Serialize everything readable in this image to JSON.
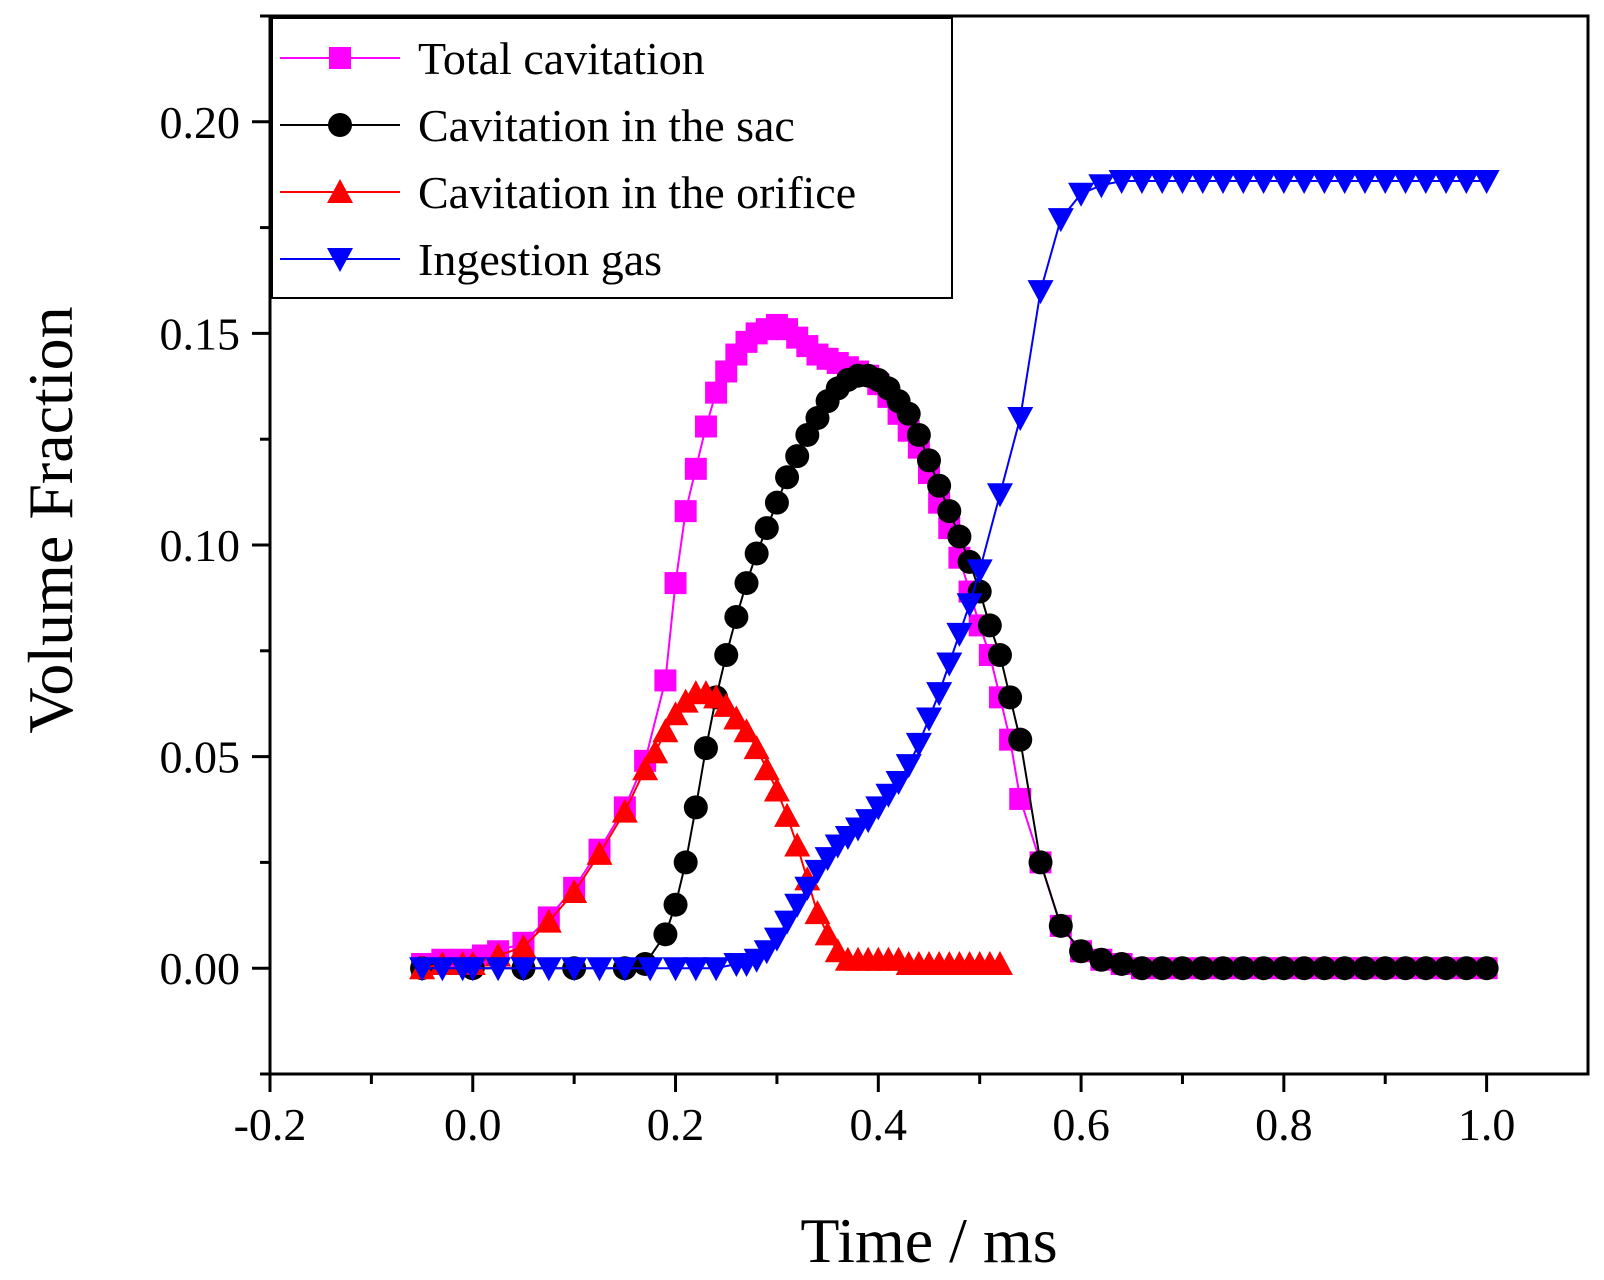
{
  "chart_data": {
    "type": "line",
    "title": "",
    "xlabel": "Time / ms",
    "ylabel": "Volume Fraction",
    "xlim": [
      -0.2,
      1.1
    ],
    "ylim": [
      -0.025,
      0.225
    ],
    "xticks": [
      -0.2,
      0.0,
      0.2,
      0.4,
      0.6,
      0.8,
      1.0
    ],
    "xtick_labels": [
      "-0.2",
      "0.0",
      "0.2",
      "0.4",
      "0.6",
      "0.8",
      "1.0"
    ],
    "yticks": [
      0.0,
      0.05,
      0.1,
      0.15,
      0.2
    ],
    "ytick_labels": [
      "0.00",
      "0.05",
      "0.10",
      "0.15",
      "0.20"
    ],
    "grid": false,
    "legend_position": "top-left",
    "series": [
      {
        "name": "Total cavitation",
        "color": "#ff00ff",
        "marker": "square",
        "x": [
          -0.05,
          -0.03,
          -0.01,
          0.01,
          0.025,
          0.05,
          0.075,
          0.1,
          0.125,
          0.15,
          0.17,
          0.19,
          0.2,
          0.21,
          0.22,
          0.23,
          0.24,
          0.25,
          0.26,
          0.27,
          0.28,
          0.29,
          0.3,
          0.31,
          0.32,
          0.33,
          0.34,
          0.35,
          0.36,
          0.37,
          0.38,
          0.39,
          0.4,
          0.41,
          0.42,
          0.43,
          0.44,
          0.45,
          0.46,
          0.47,
          0.48,
          0.49,
          0.5,
          0.51,
          0.52,
          0.53,
          0.54,
          0.56,
          0.58,
          0.6,
          0.62,
          0.64,
          0.66,
          0.68,
          0.7,
          0.72,
          0.74,
          0.76,
          0.78,
          0.8,
          0.82,
          0.84,
          0.86,
          0.88,
          0.9,
          0.92,
          0.94,
          0.96,
          0.98,
          1.0
        ],
        "y": [
          0.001,
          0.002,
          0.002,
          0.003,
          0.004,
          0.006,
          0.012,
          0.019,
          0.028,
          0.038,
          0.049,
          0.068,
          0.091,
          0.108,
          0.118,
          0.128,
          0.136,
          0.141,
          0.145,
          0.148,
          0.15,
          0.151,
          0.152,
          0.151,
          0.149,
          0.147,
          0.145,
          0.144,
          0.143,
          0.142,
          0.141,
          0.14,
          0.138,
          0.135,
          0.131,
          0.127,
          0.123,
          0.117,
          0.11,
          0.104,
          0.097,
          0.089,
          0.081,
          0.074,
          0.064,
          0.054,
          0.04,
          0.025,
          0.01,
          0.004,
          0.002,
          0.001,
          0.0,
          0.0,
          0.0,
          0.0,
          0.0,
          0.0,
          0.0,
          0.0,
          0.0,
          0.0,
          0.0,
          0.0,
          0.0,
          0.0,
          0.0,
          0.0,
          0.0,
          0.0
        ]
      },
      {
        "name": "Cavitation in the sac",
        "color": "#000000",
        "marker": "circle",
        "x": [
          -0.05,
          0.0,
          0.05,
          0.1,
          0.15,
          0.17,
          0.19,
          0.2,
          0.21,
          0.22,
          0.23,
          0.24,
          0.25,
          0.26,
          0.27,
          0.28,
          0.29,
          0.3,
          0.31,
          0.32,
          0.33,
          0.34,
          0.35,
          0.36,
          0.37,
          0.38,
          0.39,
          0.4,
          0.41,
          0.42,
          0.43,
          0.44,
          0.45,
          0.46,
          0.47,
          0.48,
          0.49,
          0.5,
          0.51,
          0.52,
          0.53,
          0.54,
          0.56,
          0.58,
          0.6,
          0.62,
          0.64,
          0.66,
          0.68,
          0.7,
          0.72,
          0.74,
          0.76,
          0.78,
          0.8,
          0.82,
          0.84,
          0.86,
          0.88,
          0.9,
          0.92,
          0.94,
          0.96,
          0.98,
          1.0
        ],
        "y": [
          0.0,
          0.0,
          0.0,
          0.0,
          0.0,
          0.001,
          0.008,
          0.015,
          0.025,
          0.038,
          0.052,
          0.064,
          0.074,
          0.083,
          0.091,
          0.098,
          0.104,
          0.11,
          0.116,
          0.121,
          0.126,
          0.13,
          0.134,
          0.137,
          0.139,
          0.14,
          0.14,
          0.139,
          0.137,
          0.134,
          0.131,
          0.126,
          0.12,
          0.114,
          0.108,
          0.102,
          0.096,
          0.089,
          0.081,
          0.074,
          0.064,
          0.054,
          0.025,
          0.01,
          0.004,
          0.002,
          0.001,
          0.0,
          0.0,
          0.0,
          0.0,
          0.0,
          0.0,
          0.0,
          0.0,
          0.0,
          0.0,
          0.0,
          0.0,
          0.0,
          0.0,
          0.0,
          0.0,
          0.0,
          0.0
        ]
      },
      {
        "name": "Cavitation in the orifice",
        "color": "#ff0000",
        "marker": "triangle-up",
        "x": [
          -0.05,
          -0.03,
          -0.01,
          0.0,
          0.025,
          0.05,
          0.075,
          0.1,
          0.125,
          0.15,
          0.17,
          0.18,
          0.19,
          0.2,
          0.21,
          0.22,
          0.23,
          0.24,
          0.25,
          0.26,
          0.27,
          0.28,
          0.29,
          0.3,
          0.31,
          0.32,
          0.33,
          0.34,
          0.35,
          0.36,
          0.37,
          0.38,
          0.39,
          0.4,
          0.41,
          0.42,
          0.43,
          0.44,
          0.45,
          0.46,
          0.47,
          0.48,
          0.49,
          0.5,
          0.51,
          0.52
        ],
        "y": [
          0.0,
          0.001,
          0.001,
          0.001,
          0.003,
          0.005,
          0.011,
          0.018,
          0.027,
          0.037,
          0.047,
          0.051,
          0.056,
          0.06,
          0.063,
          0.065,
          0.065,
          0.064,
          0.062,
          0.059,
          0.056,
          0.052,
          0.047,
          0.042,
          0.036,
          0.029,
          0.021,
          0.013,
          0.008,
          0.004,
          0.002,
          0.002,
          0.002,
          0.002,
          0.002,
          0.002,
          0.001,
          0.001,
          0.001,
          0.001,
          0.001,
          0.001,
          0.001,
          0.001,
          0.001,
          0.001
        ]
      },
      {
        "name": "Ingestion gas",
        "color": "#0000ff",
        "marker": "triangle-down",
        "x": [
          -0.05,
          -0.03,
          -0.01,
          0.0,
          0.025,
          0.05,
          0.075,
          0.1,
          0.125,
          0.15,
          0.175,
          0.2,
          0.22,
          0.24,
          0.26,
          0.27,
          0.28,
          0.29,
          0.3,
          0.31,
          0.32,
          0.33,
          0.34,
          0.35,
          0.36,
          0.37,
          0.38,
          0.39,
          0.4,
          0.41,
          0.42,
          0.43,
          0.44,
          0.45,
          0.46,
          0.47,
          0.48,
          0.49,
          0.5,
          0.52,
          0.54,
          0.56,
          0.58,
          0.6,
          0.62,
          0.64,
          0.66,
          0.68,
          0.7,
          0.72,
          0.74,
          0.76,
          0.78,
          0.8,
          0.82,
          0.84,
          0.86,
          0.88,
          0.9,
          0.92,
          0.94,
          0.96,
          0.98,
          1.0
        ],
        "y": [
          0.0,
          0.0,
          0.0,
          0.0,
          0.0,
          0.0,
          0.0,
          0.0,
          0.0,
          0.0,
          0.0,
          0.0,
          0.0,
          0.0,
          0.001,
          0.001,
          0.002,
          0.004,
          0.007,
          0.011,
          0.015,
          0.019,
          0.023,
          0.026,
          0.029,
          0.031,
          0.033,
          0.035,
          0.038,
          0.041,
          0.044,
          0.048,
          0.053,
          0.059,
          0.065,
          0.072,
          0.079,
          0.086,
          0.094,
          0.112,
          0.13,
          0.16,
          0.177,
          0.183,
          0.185,
          0.186,
          0.186,
          0.186,
          0.186,
          0.186,
          0.186,
          0.186,
          0.186,
          0.186,
          0.186,
          0.186,
          0.186,
          0.186,
          0.186,
          0.186,
          0.186,
          0.186,
          0.186,
          0.186
        ]
      }
    ]
  }
}
